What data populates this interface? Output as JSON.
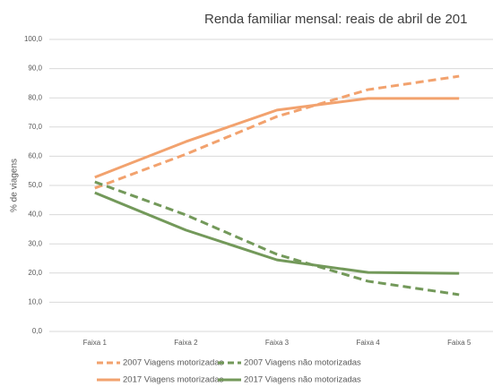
{
  "chart_data": {
    "type": "line",
    "title": "Renda familiar mensal: reais de abril de 201",
    "y_label": "% de viagens",
    "categories": [
      "Faixa 1",
      "Faixa 2",
      "Faixa 3",
      "Faixa 4",
      "Faixa 5"
    ],
    "series": [
      {
        "name": "2007 Viagens motorizadas",
        "color": "#f2a26e",
        "dashed": true,
        "values": [
          49.1,
          60.7,
          73.6,
          82.8,
          87.4
        ]
      },
      {
        "name": "2007 Viagens não motorizadas",
        "color": "#73995a",
        "dashed": true,
        "values": [
          51.2,
          39.9,
          26.4,
          17.2,
          12.6
        ]
      },
      {
        "name": "2017 Viagens motorizadas",
        "color": "#f2a26e",
        "dashed": false,
        "values": [
          52.8,
          65.0,
          75.8,
          79.8,
          79.8
        ]
      },
      {
        "name": "2017 Viagens não motorizadas",
        "color": "#73995a",
        "dashed": false,
        "values": [
          47.5,
          34.7,
          24.5,
          20.2,
          19.9
        ]
      }
    ],
    "ylim": [
      0,
      100
    ],
    "yticks": [
      {
        "value": 0,
        "label": "0,0"
      },
      {
        "value": 10,
        "label": "10,0"
      },
      {
        "value": 20,
        "label": "20,0"
      },
      {
        "value": 30,
        "label": "30,0"
      },
      {
        "value": 40,
        "label": "40,0"
      },
      {
        "value": 50,
        "label": "50,0"
      },
      {
        "value": 60,
        "label": "60,0"
      },
      {
        "value": 70,
        "label": "70,0"
      },
      {
        "value": 80,
        "label": "80,0"
      },
      {
        "value": 90,
        "label": "90,0"
      },
      {
        "value": 100,
        "label": "100,0"
      }
    ],
    "grid": true,
    "legend": "bottom"
  }
}
